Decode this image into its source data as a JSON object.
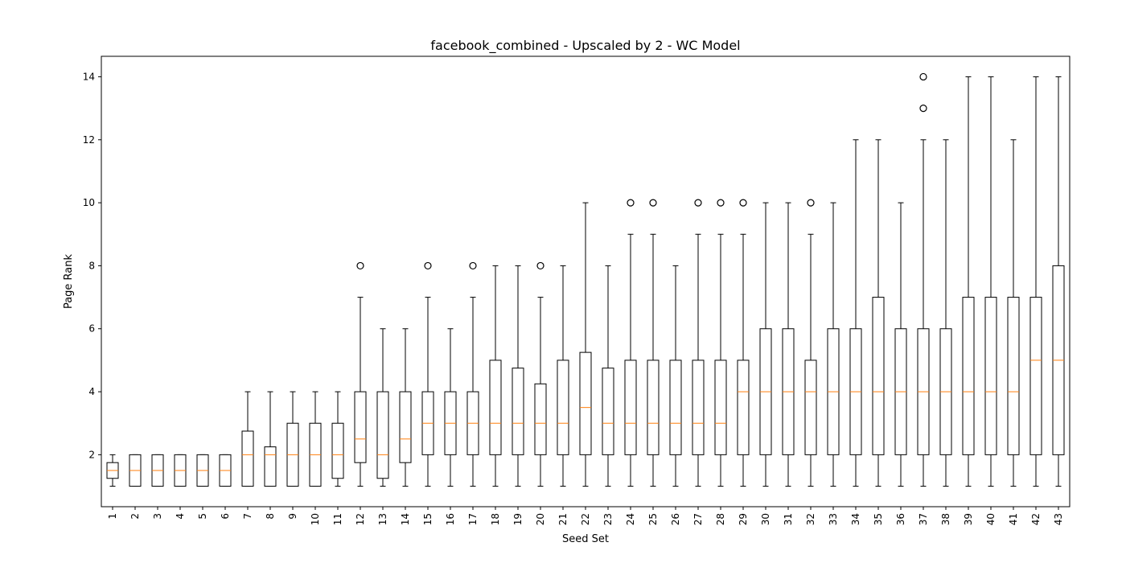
{
  "chart_data": {
    "type": "boxplot",
    "title": "facebook_combined - Upscaled by 2 - WC Model",
    "xlabel": "Seed Set",
    "ylabel": "Page Rank",
    "ylim": [
      0.35,
      14.65
    ],
    "yticks": [
      2,
      4,
      6,
      8,
      10,
      12,
      14
    ],
    "grid": false,
    "colors": {
      "box": "#000000",
      "median": "#ff7f0e",
      "background": "#ffffff"
    },
    "categories": [
      "1",
      "2",
      "3",
      "4",
      "5",
      "6",
      "7",
      "8",
      "9",
      "10",
      "11",
      "12",
      "13",
      "14",
      "15",
      "16",
      "17",
      "18",
      "19",
      "20",
      "21",
      "22",
      "23",
      "24",
      "25",
      "26",
      "27",
      "28",
      "29",
      "30",
      "31",
      "32",
      "33",
      "34",
      "35",
      "36",
      "37",
      "38",
      "39",
      "40",
      "41",
      "42",
      "43"
    ],
    "boxes": [
      {
        "label": "1",
        "whislo": 1,
        "q1": 1.25,
        "med": 1.5,
        "q3": 1.75,
        "whishi": 2,
        "fliers": []
      },
      {
        "label": "2",
        "whislo": 1,
        "q1": 1,
        "med": 1.5,
        "q3": 2,
        "whishi": 2,
        "fliers": []
      },
      {
        "label": "3",
        "whislo": 1,
        "q1": 1,
        "med": 1.5,
        "q3": 2,
        "whishi": 2,
        "fliers": []
      },
      {
        "label": "4",
        "whislo": 1,
        "q1": 1,
        "med": 1.5,
        "q3": 2,
        "whishi": 2,
        "fliers": []
      },
      {
        "label": "5",
        "whislo": 1,
        "q1": 1,
        "med": 1.5,
        "q3": 2,
        "whishi": 2,
        "fliers": []
      },
      {
        "label": "6",
        "whislo": 1,
        "q1": 1,
        "med": 1.5,
        "q3": 2,
        "whishi": 2,
        "fliers": []
      },
      {
        "label": "7",
        "whislo": 1,
        "q1": 1,
        "med": 2,
        "q3": 2.75,
        "whishi": 4,
        "fliers": []
      },
      {
        "label": "8",
        "whislo": 1,
        "q1": 1,
        "med": 2,
        "q3": 2.25,
        "whishi": 4,
        "fliers": []
      },
      {
        "label": "9",
        "whislo": 1,
        "q1": 1,
        "med": 2,
        "q3": 3,
        "whishi": 4,
        "fliers": []
      },
      {
        "label": "10",
        "whislo": 1,
        "q1": 1,
        "med": 2,
        "q3": 3,
        "whishi": 4,
        "fliers": []
      },
      {
        "label": "11",
        "whislo": 1,
        "q1": 1.25,
        "med": 2,
        "q3": 3,
        "whishi": 4,
        "fliers": []
      },
      {
        "label": "12",
        "whislo": 1,
        "q1": 1.75,
        "med": 2.5,
        "q3": 4,
        "whishi": 7,
        "fliers": [
          8
        ]
      },
      {
        "label": "13",
        "whislo": 1,
        "q1": 1.25,
        "med": 2,
        "q3": 4,
        "whishi": 6,
        "fliers": []
      },
      {
        "label": "14",
        "whislo": 1,
        "q1": 1.75,
        "med": 2.5,
        "q3": 4,
        "whishi": 6,
        "fliers": []
      },
      {
        "label": "15",
        "whislo": 1,
        "q1": 2,
        "med": 3,
        "q3": 4,
        "whishi": 7,
        "fliers": [
          8
        ]
      },
      {
        "label": "16",
        "whislo": 1,
        "q1": 2,
        "med": 3,
        "q3": 4,
        "whishi": 6,
        "fliers": []
      },
      {
        "label": "17",
        "whislo": 1,
        "q1": 2,
        "med": 3,
        "q3": 4,
        "whishi": 7,
        "fliers": [
          8
        ]
      },
      {
        "label": "18",
        "whislo": 1,
        "q1": 2,
        "med": 3,
        "q3": 5,
        "whishi": 8,
        "fliers": []
      },
      {
        "label": "19",
        "whislo": 1,
        "q1": 2,
        "med": 3,
        "q3": 4.75,
        "whishi": 8,
        "fliers": []
      },
      {
        "label": "20",
        "whislo": 1,
        "q1": 2,
        "med": 3,
        "q3": 4.25,
        "whishi": 7,
        "fliers": [
          8
        ]
      },
      {
        "label": "21",
        "whislo": 1,
        "q1": 2,
        "med": 3,
        "q3": 5,
        "whishi": 8,
        "fliers": []
      },
      {
        "label": "22",
        "whislo": 1,
        "q1": 2,
        "med": 3.5,
        "q3": 5.25,
        "whishi": 10,
        "fliers": []
      },
      {
        "label": "23",
        "whislo": 1,
        "q1": 2,
        "med": 3,
        "q3": 4.75,
        "whishi": 8,
        "fliers": []
      },
      {
        "label": "24",
        "whislo": 1,
        "q1": 2,
        "med": 3,
        "q3": 5,
        "whishi": 9,
        "fliers": [
          10
        ]
      },
      {
        "label": "25",
        "whislo": 1,
        "q1": 2,
        "med": 3,
        "q3": 5,
        "whishi": 9,
        "fliers": [
          10
        ]
      },
      {
        "label": "26",
        "whislo": 1,
        "q1": 2,
        "med": 3,
        "q3": 5,
        "whishi": 8,
        "fliers": []
      },
      {
        "label": "27",
        "whislo": 1,
        "q1": 2,
        "med": 3,
        "q3": 5,
        "whishi": 9,
        "fliers": [
          10
        ]
      },
      {
        "label": "28",
        "whislo": 1,
        "q1": 2,
        "med": 3,
        "q3": 5,
        "whishi": 9,
        "fliers": [
          10
        ]
      },
      {
        "label": "29",
        "whislo": 1,
        "q1": 2,
        "med": 4,
        "q3": 5,
        "whishi": 9,
        "fliers": [
          10
        ]
      },
      {
        "label": "30",
        "whislo": 1,
        "q1": 2,
        "med": 4,
        "q3": 6,
        "whishi": 10,
        "fliers": []
      },
      {
        "label": "31",
        "whislo": 1,
        "q1": 2,
        "med": 4,
        "q3": 6,
        "whishi": 10,
        "fliers": []
      },
      {
        "label": "32",
        "whislo": 1,
        "q1": 2,
        "med": 4,
        "q3": 5,
        "whishi": 9,
        "fliers": [
          10
        ]
      },
      {
        "label": "33",
        "whislo": 1,
        "q1": 2,
        "med": 4,
        "q3": 6,
        "whishi": 10,
        "fliers": []
      },
      {
        "label": "34",
        "whislo": 1,
        "q1": 2,
        "med": 4,
        "q3": 6,
        "whishi": 12,
        "fliers": []
      },
      {
        "label": "35",
        "whislo": 1,
        "q1": 2,
        "med": 4,
        "q3": 7,
        "whishi": 12,
        "fliers": []
      },
      {
        "label": "36",
        "whislo": 1,
        "q1": 2,
        "med": 4,
        "q3": 6,
        "whishi": 10,
        "fliers": []
      },
      {
        "label": "37",
        "whislo": 1,
        "q1": 2,
        "med": 4,
        "q3": 6,
        "whishi": 12,
        "fliers": [
          13,
          14
        ]
      },
      {
        "label": "38",
        "whislo": 1,
        "q1": 2,
        "med": 4,
        "q3": 6,
        "whishi": 12,
        "fliers": []
      },
      {
        "label": "39",
        "whislo": 1,
        "q1": 2,
        "med": 4,
        "q3": 7,
        "whishi": 14,
        "fliers": []
      },
      {
        "label": "40",
        "whislo": 1,
        "q1": 2,
        "med": 4,
        "q3": 7,
        "whishi": 14,
        "fliers": []
      },
      {
        "label": "41",
        "whislo": 1,
        "q1": 2,
        "med": 4,
        "q3": 7,
        "whishi": 12,
        "fliers": []
      },
      {
        "label": "42",
        "whislo": 1,
        "q1": 2,
        "med": 5,
        "q3": 7,
        "whishi": 14,
        "fliers": []
      },
      {
        "label": "43",
        "whislo": 1,
        "q1": 2,
        "med": 5,
        "q3": 8,
        "whishi": 14,
        "fliers": []
      }
    ]
  }
}
